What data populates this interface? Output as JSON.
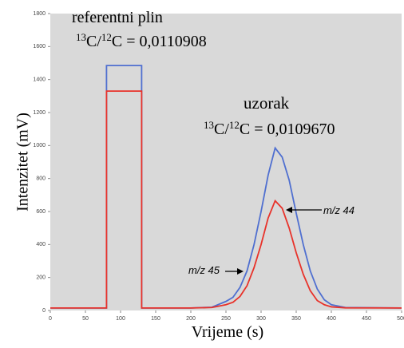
{
  "chart_data": {
    "type": "line",
    "x_label": "Vrijeme (s)",
    "y_label": "Intenzitet (mV)",
    "x": [
      0,
      80,
      80,
      130,
      130,
      200,
      230,
      250,
      260,
      270,
      280,
      290,
      300,
      310,
      320,
      330,
      340,
      350,
      360,
      370,
      380,
      390,
      400,
      420,
      500
    ],
    "series": [
      {
        "name": "m/z 45",
        "color": "#4f6fd0",
        "values": [
          15,
          15,
          1485,
          1485,
          15,
          15,
          20,
          55,
          80,
          140,
          240,
          400,
          600,
          820,
          985,
          930,
          790,
          590,
          400,
          240,
          130,
          65,
          35,
          18,
          15
        ]
      },
      {
        "name": "m/z 44",
        "color": "#e8322a",
        "values": [
          15,
          15,
          1330,
          1330,
          15,
          15,
          18,
          35,
          50,
          85,
          150,
          260,
          400,
          560,
          665,
          620,
          500,
          350,
          220,
          120,
          60,
          35,
          22,
          16,
          15
        ]
      }
    ],
    "xlim": [
      0,
      500
    ],
    "xticks": [
      0,
      50,
      100,
      150,
      200,
      250,
      300,
      350,
      400,
      450,
      500
    ],
    "ylim": [
      0,
      1800
    ],
    "yticks": [
      0,
      200,
      400,
      600,
      800,
      1000,
      1200,
      1400,
      1600,
      1800
    ],
    "background": "#d9d9d9",
    "annotations": [
      {
        "text": "referentni plin"
      },
      {
        "sup1": "13",
        "text1": "C/",
        "sup2": "12",
        "text2": "C = 0,0110908"
      },
      {
        "text": "uzorak"
      },
      {
        "sup1": "13",
        "text1": "C/",
        "sup2": "12",
        "text2": "C = 0,0109670"
      }
    ]
  }
}
